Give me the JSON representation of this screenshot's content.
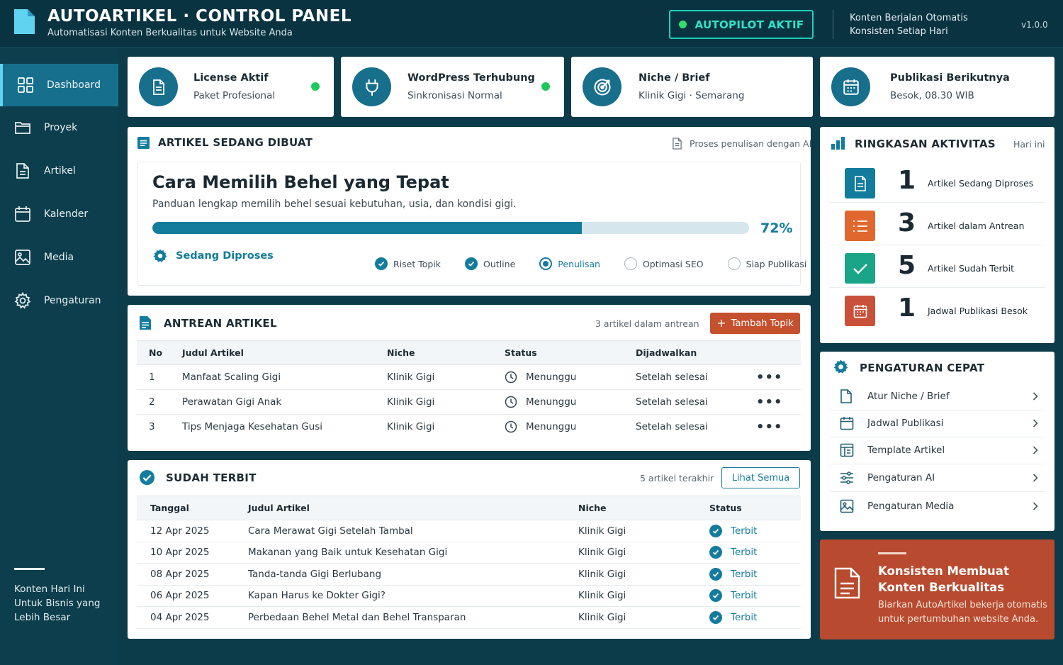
{
  "header": {
    "title": "AUTOARTIKEL · CONTROL PANEL",
    "subtitle": "Automatisasi Konten Berkualitas untuk Website Anda",
    "autopilot_label": "AUTOPILOT AKTIF",
    "tagline_1": "Konten Berjalan Otomatis",
    "tagline_2": "Konsisten Setiap Hari",
    "version": "v1.0.0"
  },
  "sidebar": {
    "items": [
      {
        "label": "Dashboard",
        "icon": "grid-icon"
      },
      {
        "label": "Proyek",
        "icon": "folder-icon"
      },
      {
        "label": "Artikel",
        "icon": "document-icon"
      },
      {
        "label": "Kalender",
        "icon": "calendar-icon"
      },
      {
        "label": "Media",
        "icon": "image-icon"
      },
      {
        "label": "Pengaturan",
        "icon": "gear-icon"
      }
    ],
    "footer_1": "Konten Hari Ini",
    "footer_2": "Untuk Bisnis yang",
    "footer_3": "Lebih Besar"
  },
  "stats": [
    {
      "title": "License Aktif",
      "sub": "Paket Profesional",
      "icon": "document-icon"
    },
    {
      "title": "WordPress Terhubung",
      "sub": "Sinkronisasi Normal",
      "icon": "plug-icon"
    },
    {
      "title": "Niche / Brief",
      "sub": "Klinik Gigi · Semarang",
      "icon": "target-icon"
    },
    {
      "title": "Publikasi Berikutnya",
      "sub": "Besok, 08.30 WIB",
      "icon": "calendar-icon"
    }
  ],
  "current": {
    "section_title": "ARTIKEL SEDANG DIBUAT",
    "hint": "Proses penulisan dengan AI",
    "article_title": "Cara Memilih Behel yang Tepat",
    "article_sub": "Panduan lengkap memilih behel sesuai kebutuhan, usia, dan kondisi gigi.",
    "progress": 72,
    "progress_label": "72%",
    "status": "Sedang Diproses",
    "steps": [
      {
        "label": "Riset Topik",
        "state": "done"
      },
      {
        "label": "Outline",
        "state": "done"
      },
      {
        "label": "Penulisan",
        "state": "current"
      },
      {
        "label": "Optimasi SEO",
        "state": "todo"
      },
      {
        "label": "Siap Publikasi",
        "state": "todo"
      }
    ]
  },
  "queue": {
    "section_title": "ANTREAN ARTIKEL",
    "count_text": "3 artikel dalam antrean",
    "add_label": "Tambah Topik",
    "headers": [
      "No",
      "Judul Artikel",
      "Niche",
      "Status",
      "Dijadwalkan"
    ],
    "rows": [
      {
        "no": "1",
        "title": "Manfaat Scaling Gigi",
        "niche": "Klinik Gigi",
        "status": "Menunggu",
        "schedule": "Setelah selesai"
      },
      {
        "no": "2",
        "title": "Perawatan Gigi Anak",
        "niche": "Klinik Gigi",
        "status": "Menunggu",
        "schedule": "Setelah selesai"
      },
      {
        "no": "3",
        "title": "Tips Menjaga Kesehatan Gusi",
        "niche": "Klinik Gigi",
        "status": "Menunggu",
        "schedule": "Setelah selesai"
      }
    ]
  },
  "published": {
    "section_title": "SUDAH TERBIT",
    "count_text": "5 artikel terakhir",
    "view_all": "Lihat Semua",
    "headers": [
      "Tanggal",
      "Judul Artikel",
      "Niche",
      "Status"
    ],
    "rows": [
      {
        "date": "12 Apr 2025",
        "title": "Cara Merawat Gigi Setelah Tambal",
        "niche": "Klinik Gigi",
        "status": "Terbit"
      },
      {
        "date": "10 Apr 2025",
        "title": "Makanan yang Baik untuk Kesehatan Gigi",
        "niche": "Klinik Gigi",
        "status": "Terbit"
      },
      {
        "date": "08 Apr 2025",
        "title": "Tanda-tanda Gigi Berlubang",
        "niche": "Klinik Gigi",
        "status": "Terbit"
      },
      {
        "date": "06 Apr 2025",
        "title": "Kapan Harus ke Dokter Gigi?",
        "niche": "Klinik Gigi",
        "status": "Terbit"
      },
      {
        "date": "04 Apr 2025",
        "title": "Perbedaan Behel Metal dan Behel Transparan",
        "niche": "Klinik Gigi",
        "status": "Terbit"
      }
    ]
  },
  "activity": {
    "section_title": "RINGKASAN AKTIVITAS",
    "period": "Hari ini",
    "items": [
      {
        "num": "1",
        "label": "Artikel Sedang Diproses",
        "color": "#137c9c"
      },
      {
        "num": "3",
        "label": "Artikel dalam Antrean",
        "color": "#e0682f"
      },
      {
        "num": "5",
        "label": "Artikel Sudah Terbit",
        "color": "#1aa488"
      },
      {
        "num": "1",
        "label": "Jadwal Publikasi Besok",
        "color": "#c9513a"
      }
    ]
  },
  "quick": {
    "section_title": "PENGATURAN CEPAT",
    "items": [
      {
        "label": "Atur Niche / Brief"
      },
      {
        "label": "Jadwal Publikasi"
      },
      {
        "label": "Template Artikel"
      },
      {
        "label": "Pengaturan AI"
      },
      {
        "label": "Pengaturan Media"
      }
    ]
  },
  "promo": {
    "title_1": "Konsisten Membuat",
    "title_2": "Konten Berkualitas",
    "text_1": "Biarkan AutoArtikel bekerja otomatis",
    "text_2": "untuk pertumbuhan website Anda."
  }
}
